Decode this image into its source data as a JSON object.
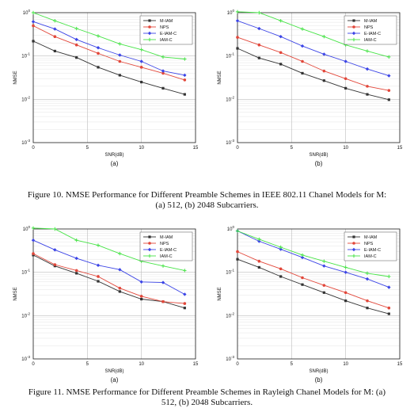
{
  "figures": [
    {
      "caption": "Figure 10. NMSE Performance for Different Preamble Schemes in IEEE 802.11 Chanel Models for M: (a) 512, (b) 2048 Subcarriers."
    },
    {
      "caption": "Figure 11. NMSE Performance for Different Preamble Schemes in Rayleigh Chanel Models for M: (a) 512, (b) 2048 Subcarriers."
    }
  ],
  "chart_data": [
    {
      "type": "line",
      "panel_label": "(a)",
      "xlabel": "SNR(dB)",
      "ylabel": "NMSE",
      "xlim": [
        0,
        15
      ],
      "ylim": [
        0.001,
        1
      ],
      "y_scale": "log",
      "x_ticks": [
        "0",
        "5",
        "10",
        "15"
      ],
      "y_ticks": [
        "10^-3",
        "10^-2",
        "10^-1",
        "10^0"
      ],
      "legend_position": "top-right",
      "x": [
        0,
        2,
        4,
        6,
        8,
        10,
        12,
        14
      ],
      "series": [
        {
          "name": "M-IAM",
          "color": "#333333",
          "marker": "square",
          "values": [
            0.22,
            0.13,
            0.092,
            0.055,
            0.036,
            0.025,
            0.018,
            0.013
          ]
        },
        {
          "name": "NPS",
          "color": "#e2473a",
          "marker": "circle",
          "values": [
            0.5,
            0.28,
            0.18,
            0.115,
            0.075,
            0.055,
            0.04,
            0.028
          ]
        },
        {
          "name": "E-IAM-C",
          "color": "#3b44e6",
          "marker": "diamond",
          "values": [
            0.62,
            0.42,
            0.24,
            0.155,
            0.105,
            0.075,
            0.045,
            0.036
          ]
        },
        {
          "name": "IAM-C",
          "color": "#47e447",
          "marker": "plus",
          "values": [
            1.0,
            0.65,
            0.43,
            0.29,
            0.19,
            0.14,
            0.095,
            0.085
          ]
        }
      ]
    },
    {
      "type": "line",
      "panel_label": "(b)",
      "xlabel": "SNR(dB)",
      "ylabel": "NMSE",
      "xlim": [
        0,
        15
      ],
      "ylim": [
        0.001,
        1
      ],
      "y_scale": "log",
      "x_ticks": [
        "0",
        "5",
        "10",
        "15"
      ],
      "y_ticks": [
        "10^-3",
        "10^-2",
        "10^-1",
        "10^0"
      ],
      "legend_position": "top-right",
      "x": [
        0,
        2,
        4,
        6,
        8,
        10,
        12,
        14
      ],
      "series": [
        {
          "name": "M-IAM",
          "color": "#333333",
          "marker": "square",
          "values": [
            0.15,
            0.09,
            0.065,
            0.04,
            0.027,
            0.018,
            0.013,
            0.0098
          ]
        },
        {
          "name": "NPS",
          "color": "#e2473a",
          "marker": "circle",
          "values": [
            0.27,
            0.18,
            0.12,
            0.075,
            0.045,
            0.03,
            0.02,
            0.016
          ]
        },
        {
          "name": "E-IAM-C",
          "color": "#3b44e6",
          "marker": "diamond",
          "values": [
            0.65,
            0.43,
            0.28,
            0.17,
            0.11,
            0.075,
            0.05,
            0.035
          ]
        },
        {
          "name": "IAM-C",
          "color": "#47e447",
          "marker": "plus",
          "values": [
            1.05,
            1.0,
            0.65,
            0.42,
            0.28,
            0.18,
            0.13,
            0.095
          ]
        }
      ]
    },
    {
      "type": "line",
      "panel_label": "(a)",
      "xlabel": "SNR(dB)",
      "ylabel": "NMSE",
      "xlim": [
        0,
        15
      ],
      "ylim": [
        0.001,
        1
      ],
      "y_scale": "log",
      "x_ticks": [
        "0",
        "5",
        "10",
        "15"
      ],
      "y_ticks": [
        "10^-3",
        "10^-2",
        "10^-1",
        "10^0"
      ],
      "legend_position": "top-right",
      "x": [
        0,
        2,
        4,
        6,
        8,
        10,
        12,
        14
      ],
      "series": [
        {
          "name": "M-IAM",
          "color": "#333333",
          "marker": "square",
          "values": [
            0.25,
            0.14,
            0.095,
            0.062,
            0.036,
            0.024,
            0.021,
            0.015
          ]
        },
        {
          "name": "NPS",
          "color": "#e2473a",
          "marker": "circle",
          "values": [
            0.27,
            0.15,
            0.11,
            0.08,
            0.043,
            0.028,
            0.021,
            0.019
          ]
        },
        {
          "name": "E-IAM-C",
          "color": "#3b44e6",
          "marker": "diamond",
          "values": [
            0.55,
            0.33,
            0.21,
            0.145,
            0.115,
            0.06,
            0.058,
            0.031
          ]
        },
        {
          "name": "IAM-C",
          "color": "#47e447",
          "marker": "plus",
          "values": [
            1.05,
            1.0,
            0.55,
            0.42,
            0.27,
            0.18,
            0.14,
            0.11
          ]
        }
      ]
    },
    {
      "type": "line",
      "panel_label": "(b)",
      "xlabel": "SNR(dB)",
      "ylabel": "NMSE",
      "xlim": [
        0,
        15
      ],
      "ylim": [
        0.001,
        1
      ],
      "y_scale": "log",
      "x_ticks": [
        "0",
        "5",
        "10",
        "15"
      ],
      "y_ticks": [
        "10^-3",
        "10^-2",
        "10^-1",
        "10^0"
      ],
      "legend_position": "top-right",
      "x": [
        0,
        2,
        4,
        6,
        8,
        10,
        12,
        14
      ],
      "series": [
        {
          "name": "M-IAM",
          "color": "#333333",
          "marker": "square",
          "values": [
            0.2,
            0.13,
            0.08,
            0.052,
            0.034,
            0.022,
            0.015,
            0.011
          ]
        },
        {
          "name": "NPS",
          "color": "#e2473a",
          "marker": "circle",
          "values": [
            0.3,
            0.18,
            0.12,
            0.075,
            0.05,
            0.034,
            0.022,
            0.015
          ]
        },
        {
          "name": "E-IAM-C",
          "color": "#3b44e6",
          "marker": "diamond",
          "values": [
            0.9,
            0.52,
            0.34,
            0.22,
            0.14,
            0.1,
            0.07,
            0.045
          ]
        },
        {
          "name": "IAM-C",
          "color": "#47e447",
          "marker": "plus",
          "values": [
            0.9,
            0.58,
            0.38,
            0.25,
            0.18,
            0.13,
            0.095,
            0.08
          ]
        }
      ]
    }
  ]
}
